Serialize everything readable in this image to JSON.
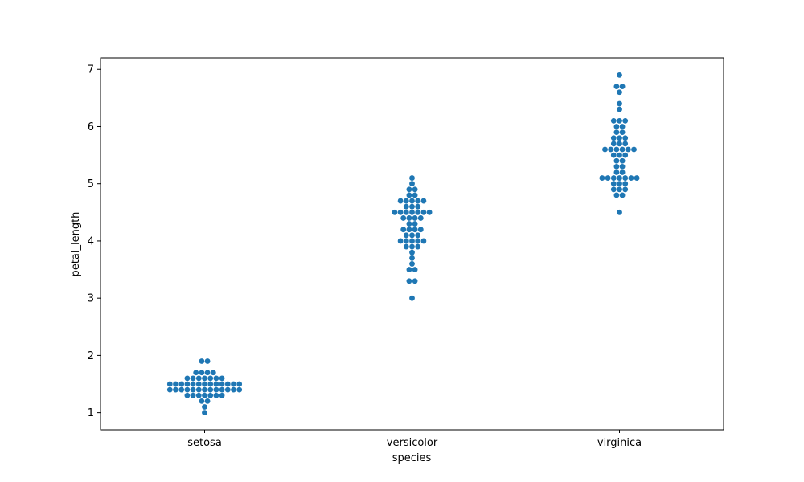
{
  "chart_data": {
    "type": "scatter",
    "subtype": "swarm",
    "title": "",
    "xlabel": "species",
    "ylabel": "petal_length",
    "categories": [
      "setosa",
      "versicolor",
      "virginica"
    ],
    "ylim": [
      0.7,
      7.2
    ],
    "yticks": [
      1,
      2,
      3,
      4,
      5,
      6,
      7
    ],
    "grid": false,
    "legend": "none",
    "point_color": "#1f77b4",
    "series": [
      {
        "category": "setosa",
        "values": [
          1.4,
          1.4,
          1.3,
          1.5,
          1.4,
          1.7,
          1.4,
          1.5,
          1.4,
          1.5,
          1.5,
          1.6,
          1.4,
          1.1,
          1.2,
          1.5,
          1.3,
          1.4,
          1.7,
          1.5,
          1.7,
          1.5,
          1.0,
          1.7,
          1.9,
          1.6,
          1.6,
          1.5,
          1.4,
          1.6,
          1.6,
          1.5,
          1.5,
          1.4,
          1.5,
          1.2,
          1.3,
          1.4,
          1.3,
          1.5,
          1.3,
          1.3,
          1.3,
          1.6,
          1.9,
          1.4,
          1.6,
          1.4,
          1.5,
          1.4
        ]
      },
      {
        "category": "versicolor",
        "values": [
          4.7,
          4.5,
          4.9,
          4.0,
          4.6,
          4.5,
          4.7,
          3.3,
          4.6,
          3.9,
          3.5,
          4.2,
          4.0,
          4.7,
          3.6,
          4.4,
          4.5,
          4.1,
          4.5,
          3.9,
          4.8,
          4.0,
          4.9,
          4.7,
          4.3,
          4.4,
          4.8,
          5.0,
          4.5,
          3.5,
          3.8,
          3.7,
          3.9,
          5.1,
          4.5,
          4.5,
          4.7,
          4.4,
          4.1,
          4.0,
          4.4,
          4.6,
          4.0,
          3.3,
          4.2,
          4.2,
          4.2,
          4.3,
          3.0,
          4.1
        ]
      },
      {
        "category": "virginica",
        "values": [
          6.0,
          5.1,
          5.9,
          5.6,
          5.8,
          6.6,
          4.5,
          6.3,
          5.8,
          6.1,
          5.1,
          5.3,
          5.5,
          5.0,
          5.1,
          5.3,
          5.5,
          6.7,
          6.9,
          5.0,
          5.7,
          4.9,
          6.7,
          4.9,
          5.7,
          6.0,
          4.8,
          4.9,
          5.6,
          5.8,
          6.1,
          6.4,
          5.6,
          5.1,
          5.6,
          6.1,
          5.6,
          5.5,
          4.8,
          5.4,
          5.6,
          5.1,
          5.1,
          5.9,
          5.7,
          5.2,
          5.0,
          5.2,
          5.4,
          5.1
        ]
      }
    ]
  }
}
